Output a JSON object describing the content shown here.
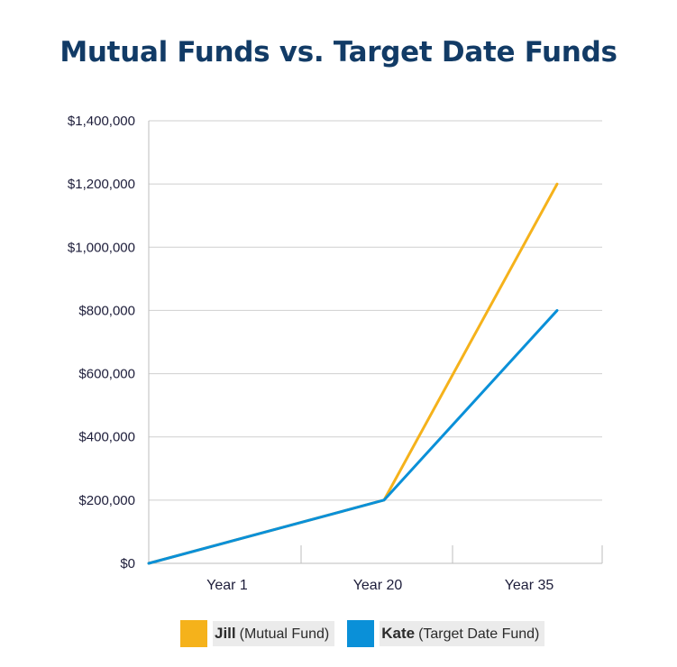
{
  "chart_data": {
    "type": "line",
    "title": "Mutual Funds vs. Target Date Funds",
    "xlabel": "",
    "ylabel": "",
    "categories": [
      "Year 1",
      "Year 20",
      "Year 35"
    ],
    "y_tick_labels": [
      "$0",
      "$200,000",
      "$400,000",
      "$600,000",
      "$800,000",
      "$1,000,000",
      "$1,200,000",
      "$1,400,000"
    ],
    "y_tick_values": [
      0,
      200000,
      400000,
      600000,
      800000,
      1000000,
      1200000,
      1400000
    ],
    "ylim": [
      0,
      1400000
    ],
    "grid": true,
    "legend_position": "bottom",
    "series": [
      {
        "name": "Jill",
        "name_detail": "(Mutual Fund)",
        "color": "#f5b21b",
        "points": [
          {
            "x": "Year 1",
            "y": 0
          },
          {
            "x": "Year 20",
            "y": 200000
          },
          {
            "x": "Year 35",
            "y": 1200000
          }
        ]
      },
      {
        "name": "Kate",
        "name_detail": "(Target Date Fund)",
        "color": "#0a90d8",
        "points": [
          {
            "x": "Year 1",
            "y": 0
          },
          {
            "x": "Year 20",
            "y": 200000
          },
          {
            "x": "Year 35",
            "y": 800000
          }
        ]
      }
    ]
  }
}
